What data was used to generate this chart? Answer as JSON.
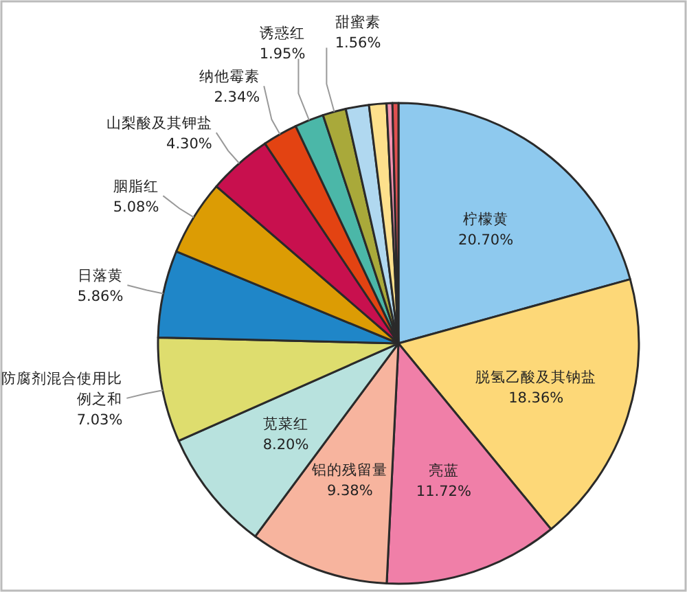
{
  "chart_data": {
    "type": "pie",
    "categories": [
      "柠檬黄",
      "脱氢乙酸及其钠盐",
      "亮蓝",
      "铝的残留量",
      "苋菜红",
      "防腐剂混合使用比例之和",
      "日落黄",
      "胭脂红",
      "山梨酸及其钾盐",
      "纳他霉素",
      "诱惑红",
      "甜蜜素",
      null,
      null,
      null,
      null
    ],
    "values": [
      20.7,
      18.36,
      11.72,
      9.38,
      8.2,
      7.03,
      5.86,
      5.08,
      4.3,
      2.34,
      1.95,
      1.56,
      1.56,
      1.17,
      0.39,
      0.4
    ],
    "value_labels": [
      "20.70%",
      "18.36%",
      "11.72%",
      "9.38%",
      "8.20%",
      "7.03%",
      "5.86%",
      "5.08%",
      "4.30%",
      "2.34%",
      "1.95%",
      "1.56%",
      null,
      null,
      null,
      null
    ],
    "colors": [
      "#8ec9ee",
      "#fdd878",
      "#f07fa8",
      "#f7b49e",
      "#b8e2de",
      "#dedd6e",
      "#1f86c8",
      "#dc9c04",
      "#c8104e",
      "#e34312",
      "#4bb7a8",
      "#a9a93a",
      "#b0d8f0",
      "#fde08c",
      "#f392b0",
      "#e05050"
    ]
  }
}
